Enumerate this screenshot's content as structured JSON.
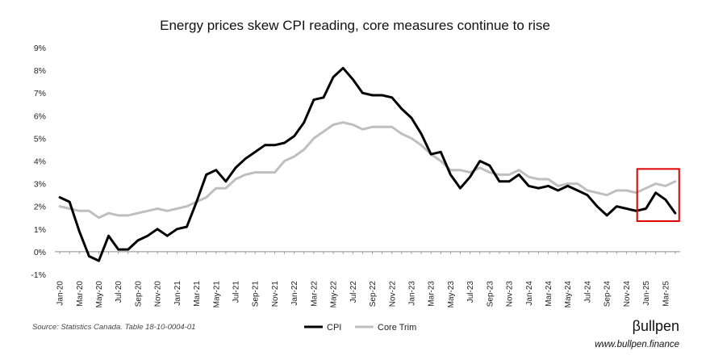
{
  "chart_data": {
    "type": "line",
    "title": "Energy prices skew CPI reading, core measures continue to rise",
    "xlabel": "",
    "ylabel": "",
    "ylim": [
      -1,
      9
    ],
    "y_ticks": [
      "-1%",
      "0%",
      "1%",
      "2%",
      "3%",
      "4%",
      "5%",
      "6%",
      "7%",
      "8%",
      "9%"
    ],
    "y_tick_values": [
      -1,
      0,
      1,
      2,
      3,
      4,
      5,
      6,
      7,
      8,
      9
    ],
    "x": [
      "Jan-20",
      "Feb-20",
      "Mar-20",
      "Apr-20",
      "May-20",
      "Jun-20",
      "Jul-20",
      "Aug-20",
      "Sep-20",
      "Oct-20",
      "Nov-20",
      "Dec-20",
      "Jan-21",
      "Feb-21",
      "Mar-21",
      "Apr-21",
      "May-21",
      "Jun-21",
      "Jul-21",
      "Aug-21",
      "Sep-21",
      "Oct-21",
      "Nov-21",
      "Dec-21",
      "Jan-22",
      "Feb-22",
      "Mar-22",
      "Apr-22",
      "May-22",
      "Jun-22",
      "Jul-22",
      "Aug-22",
      "Sep-22",
      "Oct-22",
      "Nov-22",
      "Dec-22",
      "Jan-23",
      "Feb-23",
      "Mar-23",
      "Apr-23",
      "May-23",
      "Jun-23",
      "Jul-23",
      "Aug-23",
      "Sep-23",
      "Oct-23",
      "Nov-23",
      "Dec-23",
      "Jan-24",
      "Feb-24",
      "Mar-24",
      "Apr-24",
      "May-24",
      "Jun-24",
      "Jul-24",
      "Aug-24",
      "Sep-24",
      "Oct-24",
      "Nov-24",
      "Dec-24",
      "Jan-25",
      "Feb-25",
      "Mar-25",
      "Apr-25"
    ],
    "x_tick_labels": [
      "Jan-20",
      "Mar-20",
      "May-20",
      "Jul-20",
      "Sep-20",
      "Nov-20",
      "Jan-21",
      "Mar-21",
      "May-21",
      "Jul-21",
      "Sep-21",
      "Nov-21",
      "Jan-22",
      "Mar-22",
      "May-22",
      "Jul-22",
      "Sep-22",
      "Nov-22",
      "Jan-23",
      "Mar-23",
      "May-23",
      "Jul-23",
      "Sep-23",
      "Nov-23",
      "Jan-24",
      "Mar-24",
      "May-24",
      "Jul-24",
      "Sep-24",
      "Nov-24",
      "Jan-25",
      "Mar-25"
    ],
    "series": [
      {
        "name": "CPI",
        "color": "#000000",
        "values": [
          2.4,
          2.2,
          0.9,
          -0.2,
          -0.4,
          0.7,
          0.1,
          0.1,
          0.5,
          0.7,
          1.0,
          0.7,
          1.0,
          1.1,
          2.2,
          3.4,
          3.6,
          3.1,
          3.7,
          4.1,
          4.4,
          4.7,
          4.7,
          4.8,
          5.1,
          5.7,
          6.7,
          6.8,
          7.7,
          8.1,
          7.6,
          7.0,
          6.9,
          6.9,
          6.8,
          6.3,
          5.9,
          5.2,
          4.3,
          4.4,
          3.4,
          2.8,
          3.3,
          4.0,
          3.8,
          3.1,
          3.1,
          3.4,
          2.9,
          2.8,
          2.9,
          2.7,
          2.9,
          2.7,
          2.5,
          2.0,
          1.6,
          2.0,
          1.9,
          1.8,
          1.9,
          2.6,
          2.3,
          1.7
        ]
      },
      {
        "name": "Core Trim",
        "color": "#bfbfbf",
        "values": [
          2.0,
          1.9,
          1.8,
          1.8,
          1.5,
          1.7,
          1.6,
          1.6,
          1.7,
          1.8,
          1.9,
          1.8,
          1.9,
          2.0,
          2.2,
          2.4,
          2.8,
          2.8,
          3.2,
          3.4,
          3.5,
          3.5,
          3.5,
          4.0,
          4.2,
          4.5,
          5.0,
          5.3,
          5.6,
          5.7,
          5.6,
          5.4,
          5.5,
          5.5,
          5.5,
          5.2,
          5.0,
          4.7,
          4.3,
          4.0,
          3.6,
          3.6,
          3.5,
          3.7,
          3.5,
          3.4,
          3.4,
          3.6,
          3.3,
          3.2,
          3.2,
          2.9,
          3.0,
          3.0,
          2.7,
          2.6,
          2.5,
          2.7,
          2.7,
          2.6,
          2.8,
          3.0,
          2.9,
          3.1
        ]
      }
    ],
    "legend": {
      "position": "bottom-center",
      "entries": [
        "CPI",
        "Core Trim"
      ]
    },
    "grid": false,
    "highlight_box": {
      "from": "Jan-25",
      "to": "Apr-25",
      "color": "#e00000"
    }
  },
  "footer": {
    "source": "Source: Statistics Canada. Table 18-10-0004-01",
    "brand_name": "βullpen",
    "brand_url": "www.bullpen.finance"
  }
}
